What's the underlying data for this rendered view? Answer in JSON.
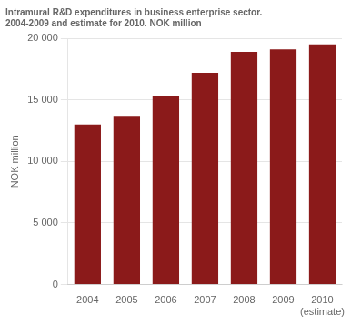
{
  "chart_data": {
    "type": "bar",
    "title": "Intramural R&D expenditures in business enterprise sector.\n2004-2009 and estimate for 2010. NOK million",
    "ylabel": "NOK million",
    "categories": [
      "2004",
      "2005",
      "2006",
      "2007",
      "2008",
      "2009",
      "2010\n(estimate)"
    ],
    "values": [
      13000,
      13700,
      15300,
      17200,
      18900,
      19100,
      19500
    ],
    "color": "#8b1a1a",
    "ylim": [
      0,
      20000
    ],
    "yticks": [
      0,
      {
        "value": 5000,
        "label": "5 000"
      },
      {
        "value": 10000,
        "label": "10 000"
      },
      {
        "value": 15000,
        "label": "15 000"
      },
      {
        "value": 20000,
        "label": "20 000"
      }
    ],
    "grid": true
  }
}
